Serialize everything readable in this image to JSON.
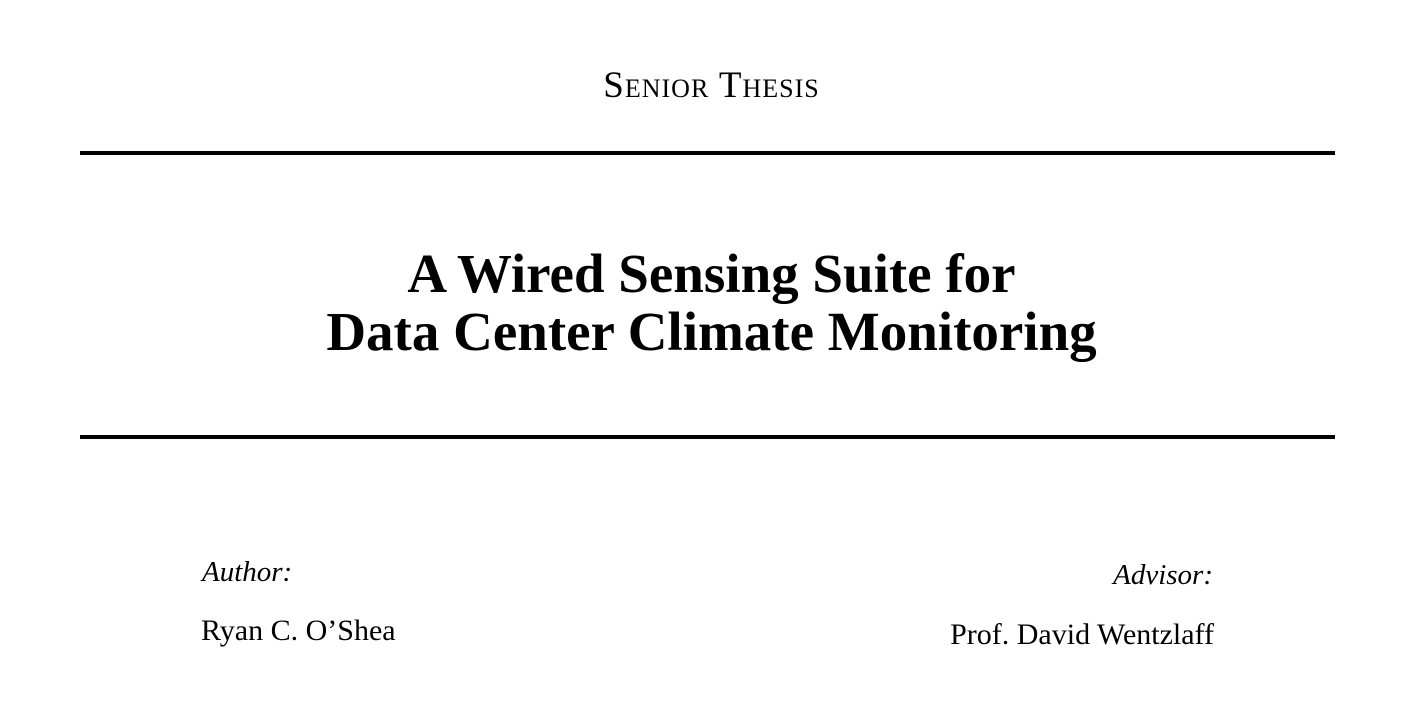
{
  "header": {
    "document_type": "Senior Thesis"
  },
  "title": {
    "line1": "A Wired Sensing Suite for",
    "line2": "Data Center Climate Monitoring"
  },
  "author": {
    "label": "Author:",
    "name": "Ryan C. O’Shea"
  },
  "advisor": {
    "label": "Advisor:",
    "name": "Prof. David Wentzlaff"
  }
}
